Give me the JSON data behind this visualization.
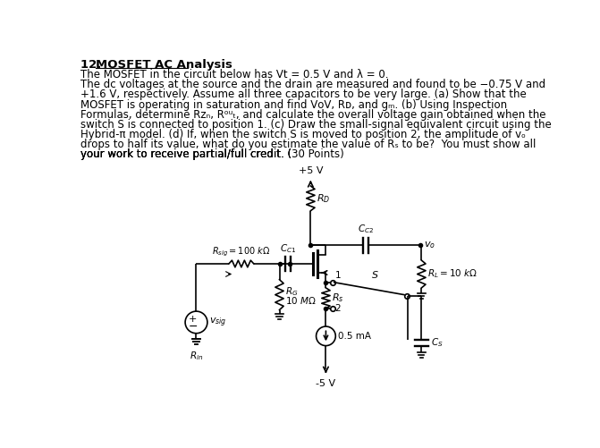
{
  "background_color": "#ffffff",
  "text_color": "#000000",
  "circuit_color": "#000000",
  "title_num": "12.",
  "title_bold": "MOSFET AC Analysis",
  "vdd": "+5 V",
  "vss": "-5 V",
  "rd_label": "$R_D$",
  "rg_label": "$R_G$\n$10\\ M\\Omega$",
  "rs_label": "$R_s$",
  "rl_label": "$R_L = 10\\ k\\Omega$",
  "rsig_label": "$R_{sig} = 100\\ k\\Omega$",
  "cc1_label": "$C_{C1}$",
  "cc2_label": "$C_{C2}$",
  "cs_label": "$C_S$",
  "isource_label": "0.5 mA",
  "vo_label": "$v_o$",
  "vsig_label": "$v_{sig}$",
  "rin_label": "$R_{in}$",
  "switch_label": "S",
  "pos1_label": "1",
  "pos2_label": "2",
  "body_line1": "The MOSFET in the circuit below has Vt = 0.5 V and λ = 0.",
  "body_line2": "The dc voltages at the source and the drain are measured and found to be −0.75 V and",
  "body_line3": "+1.6 V, respectively. Assume all three capacitors to be very large. (a) Show that the",
  "body_line4": "MOSFET is operating in saturation and find VᴏV, Rᴅ, and gₘ. (b) Using Inspection",
  "body_line5": "Formulas, determine Rᴢₙ, Rᵒᵘₜ, and calculate the overall voltage gain obtained when the",
  "body_line6": "switch S is connected to position 1. (c) Draw the small-signal equivalent circuit using the",
  "body_line7": "Hybrid-π model. (d) If, when the switch S is moved to position 2, the amplitude of vₒ",
  "body_line8": "drops to half its value, what do you estimate the value of Rₛ to be?  You must show all",
  "body_line9": "your work to receive partial/full credit. (30 Points)"
}
